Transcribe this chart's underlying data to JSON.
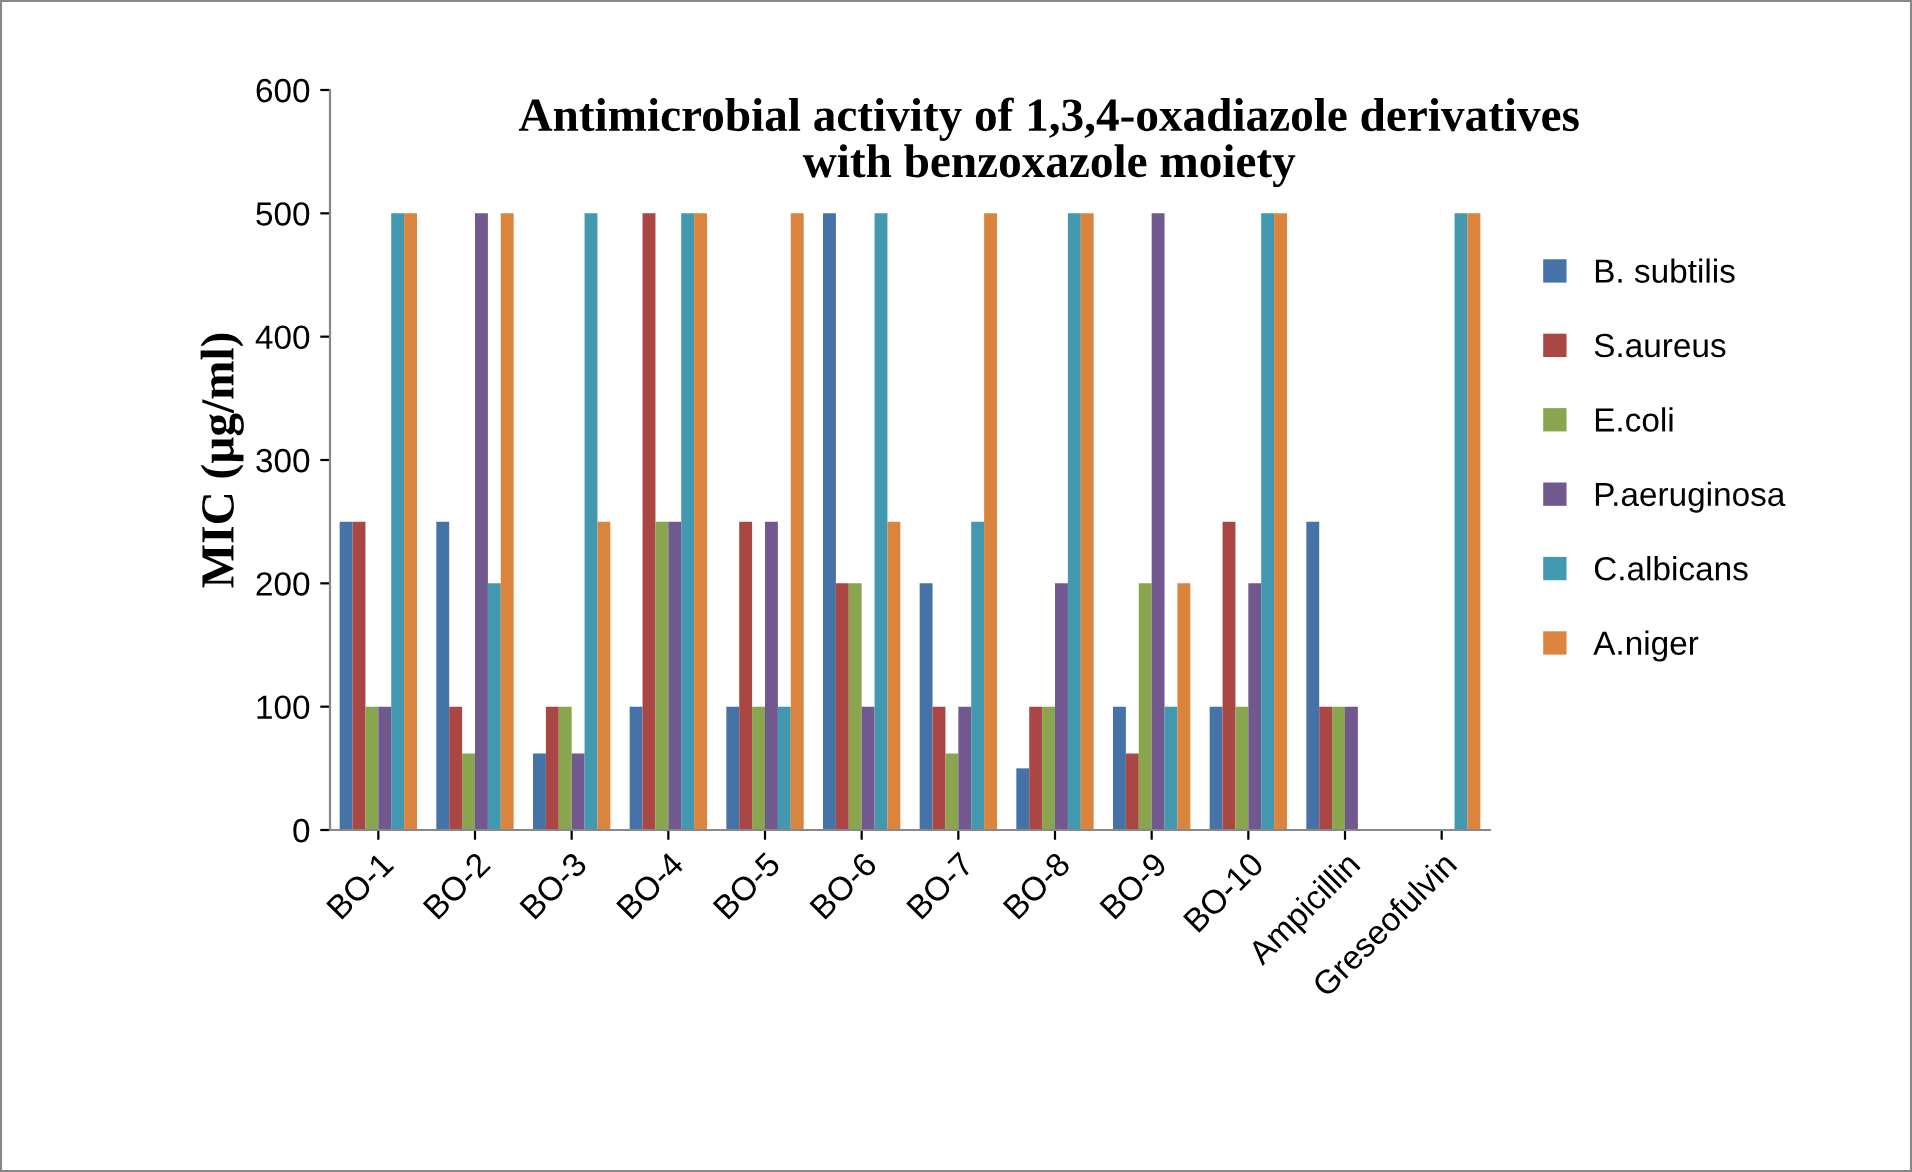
{
  "chart_data": {
    "type": "bar",
    "title": "Antimicrobial activity of 1,3,4-oxadiazole derivatives\nwith benzoxazole moiety",
    "ylabel": "MIC (µg/ml)",
    "categories": [
      "BO-1",
      "BO-2",
      "BO-3",
      "BO-4",
      "BO-5",
      "BO-6",
      "BO-7",
      "BO-8",
      "BO-9",
      "BO-10",
      "Ampicillin",
      "Greseofulvin"
    ],
    "series": [
      {
        "name": "B. subtilis",
        "color": "#4572a7",
        "values": [
          250,
          250,
          62,
          100,
          100,
          500,
          200,
          50,
          100,
          100,
          250,
          null
        ]
      },
      {
        "name": "S.aureus",
        "color": "#aa4643",
        "values": [
          250,
          100,
          100,
          500,
          250,
          200,
          100,
          100,
          62,
          250,
          100,
          null
        ]
      },
      {
        "name": "E.coli",
        "color": "#89a54e",
        "values": [
          100,
          62,
          100,
          250,
          100,
          200,
          62,
          100,
          200,
          100,
          100,
          null
        ]
      },
      {
        "name": "P.aeruginosa",
        "color": "#71588f",
        "values": [
          100,
          500,
          62,
          250,
          250,
          100,
          100,
          200,
          500,
          200,
          100,
          null
        ]
      },
      {
        "name": "C.albicans",
        "color": "#4198af",
        "values": [
          500,
          200,
          500,
          500,
          100,
          500,
          250,
          500,
          100,
          500,
          null,
          500
        ]
      },
      {
        "name": "A.niger",
        "color": "#db843d",
        "values": [
          500,
          500,
          250,
          500,
          500,
          250,
          500,
          500,
          200,
          500,
          null,
          500
        ]
      }
    ],
    "ylim": [
      0,
      600
    ],
    "yticks": [
      0,
      100,
      200,
      300,
      400,
      500,
      600
    ],
    "grid": false,
    "legend": "right"
  }
}
